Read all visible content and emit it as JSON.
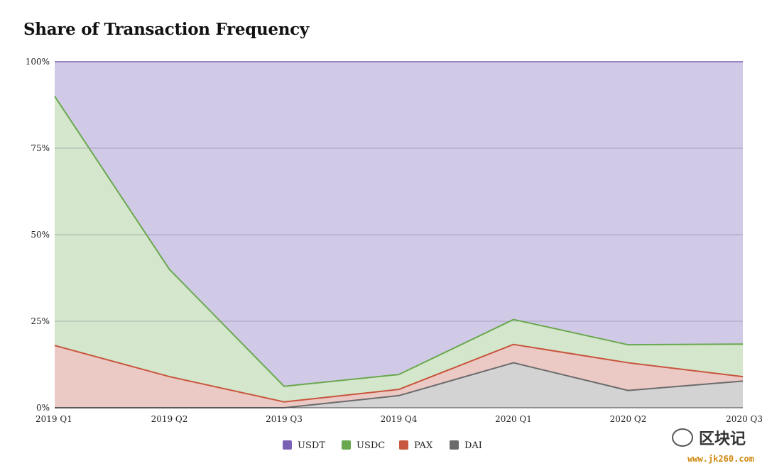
{
  "title": "Share of Transaction Frequency",
  "chart_data": {
    "type": "area",
    "stacked": true,
    "normalized": true,
    "categories": [
      "2019 Q1",
      "2019 Q2",
      "2019 Q3",
      "2019 Q4",
      "2020 Q1",
      "2020 Q2",
      "2020 Q3"
    ],
    "ylim": [
      0,
      100
    ],
    "yticks": [
      "0%",
      "25%",
      "50%",
      "75%",
      "100%"
    ],
    "ytick_values": [
      0,
      25,
      50,
      75,
      100
    ],
    "grid": true,
    "legend_position": "bottom",
    "series": [
      {
        "name": "DAI",
        "values": [
          0,
          0,
          0,
          3.5,
          13,
          5,
          7.7
        ],
        "line": "#6b6b6b",
        "fill": "#d3d3d3"
      },
      {
        "name": "PAX",
        "values": [
          18,
          9,
          1.7,
          1.8,
          5.3,
          8,
          1.3
        ],
        "line": "#c8553d",
        "fill": "#ebcac5"
      },
      {
        "name": "USDC",
        "values": [
          72,
          31,
          4.5,
          4.3,
          7.2,
          5.2,
          9.4
        ],
        "line": "#6aa84f",
        "fill": "#d4e6cb"
      },
      {
        "name": "USDT",
        "values": [
          10,
          60,
          93.8,
          90.4,
          74.5,
          81.8,
          81.6
        ],
        "line": "#7b61b4",
        "fill": "#d1cae6"
      }
    ],
    "legend_order": [
      "USDT",
      "USDC",
      "PAX",
      "DAI"
    ]
  },
  "watermark": {
    "text": "区块记",
    "url": "www.jk260.com"
  }
}
